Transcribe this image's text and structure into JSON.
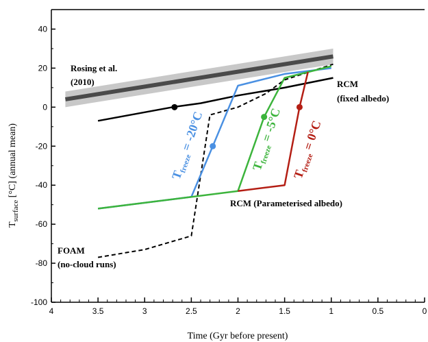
{
  "chart_data": {
    "type": "line",
    "xlabel": "Time (Gyr before present)",
    "ylabel": {
      "main": "T",
      "sub": "surface",
      "rest": " [°C] (annual mean)"
    },
    "xlim": [
      4,
      0
    ],
    "ylim": [
      -100,
      50
    ],
    "x_ticks": [
      4,
      3.5,
      3,
      2.5,
      2,
      1.5,
      1,
      0.5,
      0
    ],
    "x_tick_labels": [
      "4",
      "3.5",
      "3",
      "2.5",
      "2",
      "1.5",
      "1",
      "0.5",
      "0"
    ],
    "y_ticks": [
      -100,
      -80,
      -60,
      -40,
      -20,
      0,
      20,
      40
    ],
    "y_tick_labels": [
      "-100",
      "-80",
      "-60",
      "-40",
      "-20",
      "0",
      "20",
      "40"
    ],
    "grid": false,
    "colors": {
      "band_light": "#c8c8c8",
      "band_dark": "#4a4a4a",
      "fixed": "#000000",
      "foam": "#000000",
      "blue": "#4a90e2",
      "green": "#3cb43c",
      "red": "#b41e14"
    },
    "band": {
      "x": [
        3.85,
        0.98
      ],
      "center": [
        4,
        26
      ],
      "half_width": 4
    },
    "series": [
      {
        "key": "fixed",
        "x": [
          3.5,
          2.7,
          2.4,
          2.0,
          1.5,
          0.98
        ],
        "y": [
          -7,
          0,
          2,
          6,
          10,
          15
        ],
        "style": "solid",
        "marker": {
          "x": 2.68,
          "y": 0
        }
      },
      {
        "key": "foam",
        "x": [
          3.5,
          3.0,
          2.5,
          2.3,
          2.0,
          1.7,
          1.5,
          0.98
        ],
        "y": [
          -77,
          -73,
          -66,
          -4,
          0,
          7,
          14,
          22
        ],
        "style": "dashed"
      },
      {
        "key": "blue",
        "x": [
          3.5,
          2.5,
          2.27,
          2.0,
          1.5,
          1.0
        ],
        "y": [
          -52,
          -46,
          -20,
          11,
          17,
          20
        ],
        "style": "solid",
        "marker": {
          "x": 2.27,
          "y": -20
        }
      },
      {
        "key": "green",
        "x": [
          3.5,
          2.0,
          1.72,
          1.5,
          1.0
        ],
        "y": [
          -52,
          -43,
          -5,
          15,
          21
        ],
        "style": "solid",
        "marker": {
          "x": 1.72,
          "y": -5
        }
      },
      {
        "key": "red",
        "x": [
          2.0,
          1.5,
          1.34,
          1.25
        ],
        "y": [
          -43,
          -40,
          0,
          18
        ],
        "style": "solid",
        "marker": {
          "x": 1.34,
          "y": 0
        }
      }
    ],
    "annotations": {
      "rosing": [
        "Rosing et al.",
        "(2010)"
      ],
      "rcm_fixed": [
        "RCM",
        "(fixed albedo)"
      ],
      "rcm_param": "RCM (Parameterised albedo)",
      "foam": [
        "FOAM",
        "(no-cloud runs)"
      ],
      "freeze_blue": {
        "main": "T",
        "sub": "freeze",
        "rest": " = -20°C"
      },
      "freeze_green": {
        "main": "T",
        "sub": "freeze",
        "rest": " = -5°C"
      },
      "freeze_red": {
        "main": "T",
        "sub": "freeze",
        "rest": " = 0°C"
      }
    }
  }
}
